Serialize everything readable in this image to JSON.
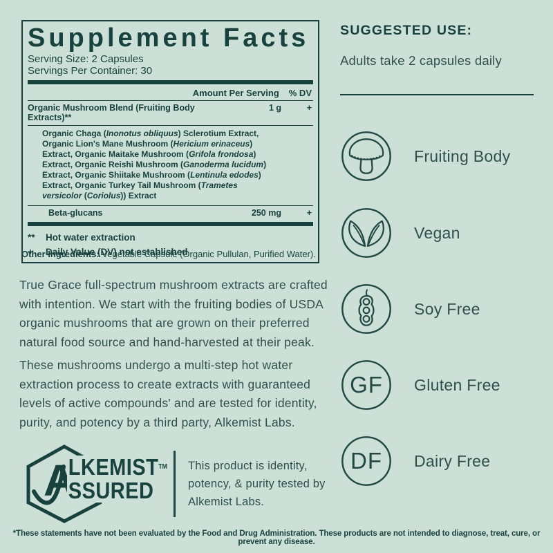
{
  "colors": {
    "background": "#cde0d8",
    "dark_teal": "#17423e",
    "soft_teal_text": "#2f4f4b"
  },
  "supplement_facts": {
    "title": "Supplement Facts",
    "serving_size": "Serving Size: 2 Capsules",
    "servings_per_container": "Servings Per Container: 30",
    "column_headers": {
      "amount": "Amount Per Serving",
      "dv": "% DV"
    },
    "rows": [
      {
        "name": "Organic Mushroom Blend (Fruiting Body Extracts)**",
        "amount": "1 g",
        "dv": "+"
      },
      {
        "name": "Beta-glucans",
        "amount": "250 mg",
        "dv": "+"
      }
    ],
    "blend_ingredients": [
      {
        "text": "Organic Chaga (",
        "italic": false
      },
      {
        "text": "Inonotus obliquus",
        "italic": true
      },
      {
        "text": ") Sclerotium Extract, Organic Lion's Mane Mushroom (",
        "italic": false
      },
      {
        "text": "Hericium erinaceus",
        "italic": true
      },
      {
        "text": ") Extract, Organic Maitake Mushroom (",
        "italic": false
      },
      {
        "text": "Grifola frondosa",
        "italic": true
      },
      {
        "text": ") Extract, Organic Reishi Mushroom (",
        "italic": false
      },
      {
        "text": "Ganoderma lucidum",
        "italic": true
      },
      {
        "text": ") Extract, Organic Shiitake Mushroom (",
        "italic": false
      },
      {
        "text": "Lentinula edodes",
        "italic": true
      },
      {
        "text": ") Extract, Organic Turkey Tail Mushroom (",
        "italic": false
      },
      {
        "text": "Trametes versicolor",
        "italic": true
      },
      {
        "text": " (",
        "italic": false
      },
      {
        "text": "Coriolus",
        "italic": true
      },
      {
        "text": ")) Extract",
        "italic": false
      }
    ],
    "footnotes": [
      {
        "symbol": "**",
        "text": "Hot water extraction"
      },
      {
        "symbol": "+",
        "text": "Daily Value (DV) not established"
      }
    ]
  },
  "other_ingredients": {
    "label": "Other Ingredients:",
    "value": "Vegetable Capsule (Organic Pullulan, Purified Water)."
  },
  "description": {
    "paragraph1": "True Grace full-spectrum mushroom extracts are crafted with intention. We start with the fruiting bodies of USDA organic mushrooms that are grown on their preferred natural food source and hand-harvested at their peak.",
    "paragraph2": "These mushrooms undergo a multi-step hot water extraction process to create extracts with guaranteed levels of active compounds' and are tested for identity, purity, and potency by a third party, Alkemist Labs."
  },
  "alkemist": {
    "brand_initial": "A",
    "brand_line1": "LKEMIST",
    "brand_line2": "SSURED",
    "trademark": "TM",
    "caption": "This product is identity, potency, & purity tested by Alkemist Labs."
  },
  "suggested_use": {
    "heading": "SUGGESTED USE:",
    "text": "Adults take 2 capsules daily"
  },
  "badges": [
    {
      "icon": "mushroom-icon",
      "label": "Fruiting Body"
    },
    {
      "icon": "leaf-icon",
      "label": "Vegan"
    },
    {
      "icon": "soybean-icon",
      "label": "Soy Free"
    },
    {
      "icon": "gf-monogram-icon",
      "label": "Gluten Free",
      "monogram": "GF"
    },
    {
      "icon": "df-monogram-icon",
      "label": "Dairy Free",
      "monogram": "DF"
    }
  ],
  "footer": {
    "disclaimer": "*These statements have not been evaluated by the Food and Drug Administration. These products are not intended to diagnose, treat, cure, or prevent any disease."
  }
}
